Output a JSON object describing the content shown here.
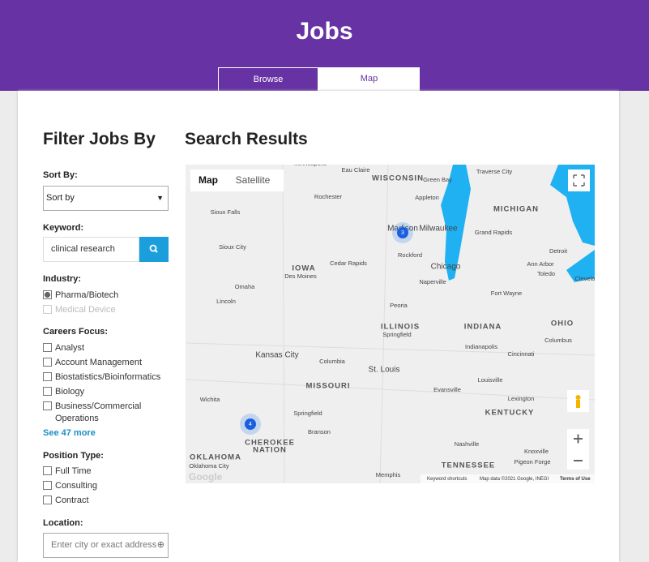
{
  "header": {
    "title": "Jobs",
    "tabs": [
      "Browse",
      "Map"
    ]
  },
  "filters": {
    "title": "Filter Jobs By",
    "sort_label": "Sort By:",
    "sort_value": "Sort by",
    "keyword_label": "Keyword:",
    "keyword_value": "clinical research",
    "industry_label": "Industry:",
    "industry_options": [
      {
        "label": "Pharma/Biotech",
        "checked": true,
        "disabled": false
      },
      {
        "label": "Medical Device",
        "checked": false,
        "disabled": true
      }
    ],
    "careers_label": "Careers Focus:",
    "careers_options": [
      "Analyst",
      "Account Management",
      "Biostatistics/Bioinformatics",
      "Biology",
      "Business/Commercial Operations"
    ],
    "see_more": "See 47 more",
    "position_label": "Position Type:",
    "position_options": [
      "Full Time",
      "Consulting",
      "Contract"
    ],
    "location_label": "Location:",
    "location_placeholder": "Enter city or exact address"
  },
  "results": {
    "title": "Search Results",
    "map_buttons": [
      "Map",
      "Satellite"
    ],
    "labels": [
      "WISCONSIN",
      "MICHIGAN",
      "Milwaukee",
      "Madison",
      "Chicago",
      "IOWA",
      "Des Moines",
      "Cedar Rapids",
      "Rochester",
      "Sioux Falls",
      "Sioux City",
      "Omaha",
      "Lincoln",
      "Rockford",
      "Naperville",
      "Detroit",
      "Grand Rapids",
      "Peoria",
      "ILLINOIS",
      "Springfield",
      "INDIANA",
      "Indianapolis",
      "OHIO",
      "Columbus",
      "Cincinnati",
      "Fort Wayne",
      "Kansas City",
      "Columbia",
      "St. Louis",
      "MISSOURI",
      "Louisville",
      "Lexington",
      "KENTUCKY",
      "Evansville",
      "Wichita",
      "Springfield",
      "CHEROKEE",
      "NATION",
      "OKLAHOMA",
      "Oklahoma City",
      "Nashville",
      "TENNESSEE",
      "Knoxville",
      "Memphis",
      "Ann Arbor",
      "Toledo",
      "Green Bay",
      "Appleton",
      "Traverse City",
      "Minneapolis",
      "Eau Claire",
      "Cleveland",
      "Branson",
      "Pigeon Forge"
    ],
    "clusters": [
      "3",
      "4"
    ],
    "google": "Google",
    "footer": [
      "Keyword shortcuts",
      "Map data ©2021 Google, INEGI",
      "Terms of Use"
    ]
  }
}
